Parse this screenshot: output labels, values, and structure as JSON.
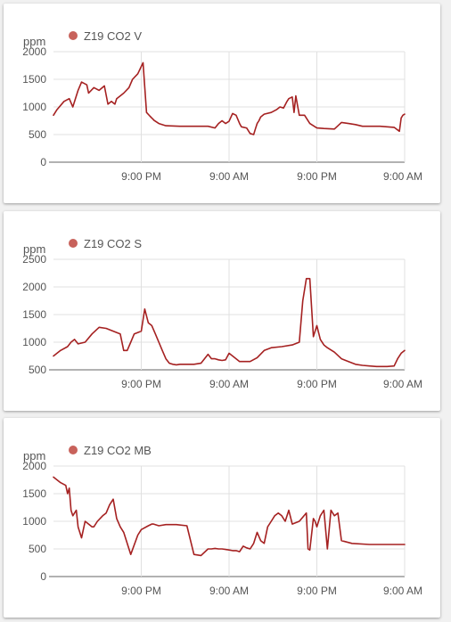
{
  "chart_data": [
    {
      "type": "line",
      "ylabel": "ppm",
      "ylim": [
        0,
        2000
      ],
      "yticks": [
        0,
        500,
        1000,
        1500,
        2000
      ],
      "xtick_labels": [
        "9:00 PM",
        "9:00 AM",
        "9:00 PM",
        "9:00 AM"
      ],
      "xtick_at": [
        0.25,
        0.5,
        0.75,
        1.0
      ],
      "grid": true,
      "legend_placement": "top-left",
      "series": [
        {
          "name": "Z19 CO2 V",
          "color": "#a52121",
          "x": [
            0.0,
            0.01,
            0.03,
            0.045,
            0.055,
            0.07,
            0.08,
            0.095,
            0.1,
            0.115,
            0.13,
            0.145,
            0.155,
            0.165,
            0.175,
            0.18,
            0.19,
            0.2,
            0.215,
            0.225,
            0.24,
            0.255,
            0.265,
            0.275,
            0.28,
            0.283,
            0.286,
            0.3,
            0.32,
            0.36,
            0.4,
            0.44,
            0.46,
            0.47,
            0.48,
            0.49,
            0.5,
            0.51,
            0.52,
            0.53,
            0.535,
            0.55,
            0.56,
            0.57,
            0.575,
            0.58,
            0.585,
            0.59,
            0.6,
            0.62,
            0.635,
            0.645,
            0.655,
            0.665,
            0.67,
            0.68,
            0.685,
            0.69,
            0.7,
            0.715,
            0.73,
            0.75,
            0.77,
            0.8,
            0.82,
            0.84,
            0.86,
            0.88,
            0.9,
            0.93,
            0.95,
            0.97,
            0.985,
            0.99,
            0.995,
            1.0
          ],
          "y": [
            850,
            950,
            1100,
            1150,
            1000,
            1300,
            1450,
            1400,
            1250,
            1350,
            1300,
            1380,
            1050,
            1100,
            1050,
            1150,
            1200,
            1250,
            1350,
            1500,
            1600,
            1800,
            900,
            830,
            800,
            780,
            760,
            700,
            660,
            650,
            650,
            650,
            620,
            700,
            750,
            700,
            740,
            880,
            850,
            700,
            640,
            620,
            520,
            500,
            600,
            700,
            750,
            820,
            870,
            900,
            950,
            1000,
            980,
            1100,
            1150,
            1180,
            900,
            1200,
            850,
            850,
            700,
            620,
            610,
            600,
            720,
            700,
            680,
            650,
            650,
            650,
            640,
            630,
            560,
            800,
            850,
            870
          ]
        }
      ]
    },
    {
      "type": "line",
      "ylabel": "ppm",
      "ylim": [
        500,
        2500
      ],
      "yticks": [
        500,
        1000,
        1500,
        2000,
        2500
      ],
      "xtick_labels": [
        "9:00 PM",
        "9:00 AM",
        "9:00 PM",
        "9:00 AM"
      ],
      "xtick_at": [
        0.25,
        0.5,
        0.75,
        1.0
      ],
      "grid": true,
      "legend_placement": "top-left",
      "series": [
        {
          "name": "Z19 CO2 S",
          "color": "#a52121",
          "x": [
            0.0,
            0.02,
            0.04,
            0.05,
            0.06,
            0.07,
            0.09,
            0.11,
            0.13,
            0.15,
            0.17,
            0.19,
            0.2,
            0.21,
            0.22,
            0.23,
            0.25,
            0.26,
            0.27,
            0.28,
            0.29,
            0.3,
            0.31,
            0.32,
            0.33,
            0.34,
            0.35,
            0.36,
            0.38,
            0.4,
            0.42,
            0.44,
            0.45,
            0.46,
            0.47,
            0.48,
            0.49,
            0.5,
            0.52,
            0.53,
            0.55,
            0.56,
            0.58,
            0.6,
            0.62,
            0.65,
            0.68,
            0.7,
            0.71,
            0.72,
            0.73,
            0.74,
            0.75,
            0.76,
            0.77,
            0.78,
            0.8,
            0.82,
            0.84,
            0.86,
            0.88,
            0.9,
            0.92,
            0.95,
            0.97,
            0.98,
            0.99,
            1.0
          ],
          "y": [
            750,
            850,
            920,
            1000,
            1050,
            970,
            1000,
            1150,
            1270,
            1250,
            1200,
            1150,
            850,
            850,
            1000,
            1150,
            1200,
            1600,
            1350,
            1300,
            1150,
            1000,
            850,
            700,
            620,
            600,
            590,
            600,
            600,
            600,
            620,
            780,
            700,
            700,
            680,
            670,
            680,
            800,
            700,
            650,
            650,
            650,
            720,
            850,
            900,
            920,
            950,
            1000,
            1750,
            2150,
            2150,
            1100,
            1300,
            1050,
            950,
            900,
            820,
            700,
            650,
            600,
            580,
            570,
            560,
            560,
            570,
            700,
            800,
            850
          ]
        }
      ]
    },
    {
      "type": "line",
      "ylabel": "ppm",
      "ylim": [
        0,
        2000
      ],
      "yticks": [
        0,
        500,
        1000,
        1500,
        2000
      ],
      "xtick_labels": [
        "9:00 PM",
        "9:00 AM",
        "9:00 PM",
        "9:00 AM"
      ],
      "xtick_at": [
        0.25,
        0.5,
        0.75,
        1.0
      ],
      "grid": true,
      "legend_placement": "top-left",
      "series": [
        {
          "name": "Z19 CO2 MB",
          "color": "#a52121",
          "x": [
            0.0,
            0.02,
            0.035,
            0.04,
            0.045,
            0.05,
            0.055,
            0.065,
            0.07,
            0.08,
            0.09,
            0.1,
            0.11,
            0.115,
            0.125,
            0.14,
            0.15,
            0.16,
            0.17,
            0.18,
            0.19,
            0.2,
            0.22,
            0.24,
            0.25,
            0.27,
            0.28,
            0.285,
            0.3,
            0.32,
            0.35,
            0.38,
            0.4,
            0.42,
            0.44,
            0.45,
            0.46,
            0.47,
            0.48,
            0.49,
            0.5,
            0.51,
            0.52,
            0.53,
            0.54,
            0.55,
            0.56,
            0.57,
            0.58,
            0.59,
            0.6,
            0.61,
            0.62,
            0.63,
            0.64,
            0.65,
            0.66,
            0.67,
            0.68,
            0.7,
            0.72,
            0.725,
            0.73,
            0.74,
            0.745,
            0.75,
            0.76,
            0.77,
            0.78,
            0.79,
            0.8,
            0.81,
            0.82,
            0.85,
            0.9,
            0.95,
            1.0
          ],
          "y": [
            1800,
            1700,
            1650,
            1500,
            1600,
            1200,
            1100,
            1200,
            900,
            700,
            1000,
            950,
            900,
            900,
            1000,
            1100,
            1150,
            1300,
            1400,
            1050,
            900,
            800,
            400,
            750,
            850,
            920,
            950,
            950,
            920,
            940,
            940,
            920,
            400,
            380,
            500,
            500,
            510,
            500,
            500,
            490,
            480,
            470,
            470,
            450,
            550,
            520,
            500,
            600,
            800,
            650,
            600,
            900,
            1000,
            1100,
            1150,
            1100,
            1000,
            1200,
            950,
            1000,
            1150,
            500,
            480,
            1050,
            1000,
            900,
            1100,
            1200,
            500,
            1200,
            1100,
            1150,
            650,
            600,
            580,
            580,
            580
          ]
        }
      ]
    }
  ]
}
